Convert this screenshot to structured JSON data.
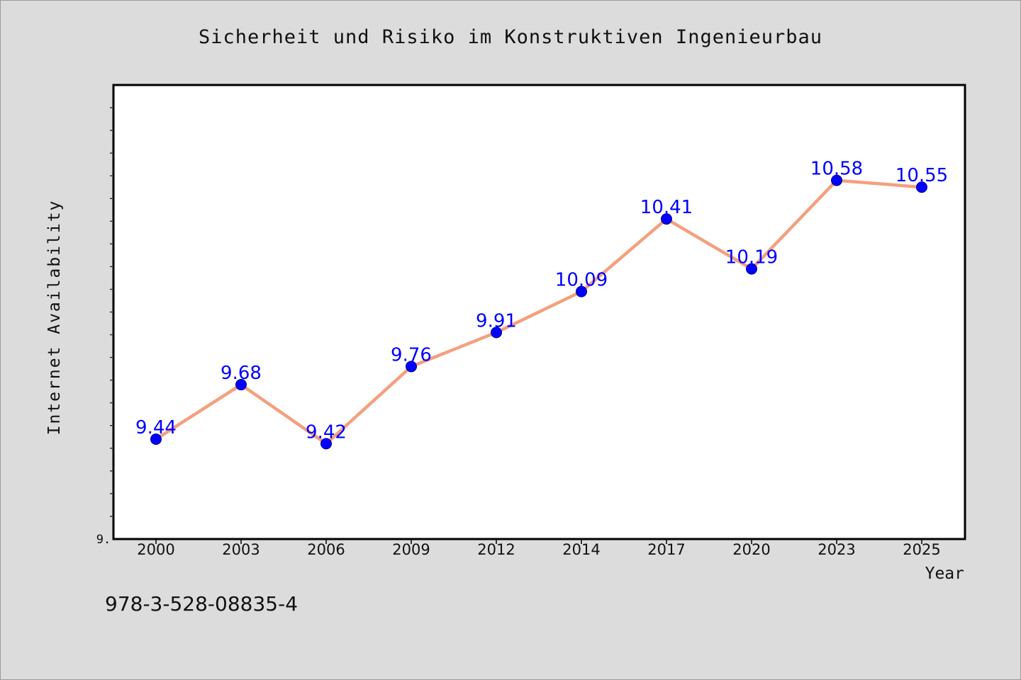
{
  "chart_data": {
    "type": "line",
    "title": "Sicherheit und Risiko im Konstruktiven Ingenieurbau",
    "xlabel": "Year",
    "ylabel": "Internet Availability",
    "categories": [
      "2000",
      "2003",
      "2006",
      "2009",
      "2012",
      "2014",
      "2017",
      "2020",
      "2023",
      "2025"
    ],
    "series": [
      {
        "values": [
          9.44,
          9.68,
          9.42,
          9.76,
          9.91,
          10.09,
          10.41,
          10.19,
          10.58,
          10.55
        ],
        "data_labels": [
          "9.44",
          "9.68",
          "9.42",
          "9.76",
          "9.91",
          "10.09",
          "10.41",
          "10.19",
          "10.58",
          "10.55"
        ]
      }
    ],
    "ylim": [
      9.0,
      11.0
    ],
    "ytick_label": "9.",
    "grid": false,
    "legend": "none",
    "colors": {
      "line": "#f4a07e",
      "marker": "#0000ff",
      "data_label": "#0000ff",
      "plot_background": "#ffffff",
      "figure_background": "#dcdcdc"
    }
  },
  "footer": {
    "isbn": "978-3-528-08835-4"
  }
}
